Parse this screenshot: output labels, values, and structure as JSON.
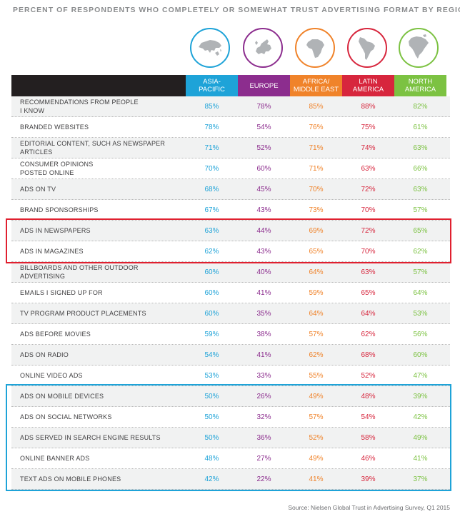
{
  "title": "PERCENT OF RESPONDENTS WHO COMPLETELY OR SOMEWHAT TRUST ADVERTISING FORMAT BY REGION",
  "source": "Source: Nielsen Global Trust in Advertising Survey, Q1 2015",
  "colors": {
    "asia": "#1ea3d8",
    "europe": "#8c2d8e",
    "africa": "#f0832a",
    "latam": "#d7263d",
    "na": "#7cc242",
    "header_dark": "#231f20",
    "highlight_red": "#e0202f",
    "highlight_blue": "#1ea3d8"
  },
  "chart_data": {
    "type": "table",
    "title": "PERCENT OF RESPONDENTS WHO COMPLETELY OR SOMEWHAT TRUST ADVERTISING FORMAT BY REGION",
    "columns": [
      {
        "key": "asia",
        "label": "ASIA-PACIFIC",
        "line1": "ASIA-",
        "line2": "PACIFIC",
        "icon": "asia-map-icon"
      },
      {
        "key": "europe",
        "label": "EUROPE",
        "line1": "EUROPE",
        "line2": "",
        "icon": "europe-map-icon"
      },
      {
        "key": "africa",
        "label": "AFRICA/ MIDDLE EAST",
        "line1": "AFRICA/",
        "line2": "MIDDLE EAST",
        "icon": "africa-map-icon"
      },
      {
        "key": "latam",
        "label": "LATIN AMERICA",
        "line1": "LATIN",
        "line2": "AMERICA",
        "icon": "latin-america-map-icon"
      },
      {
        "key": "na",
        "label": "NORTH AMERICA",
        "line1": "NORTH",
        "line2": "AMERICA",
        "icon": "north-america-map-icon"
      }
    ],
    "rows": [
      {
        "label": "RECOMMENDATIONS FROM PEOPLE I KNOW",
        "line1": "RECOMMENDATIONS FROM PEOPLE",
        "line2": "I KNOW",
        "values": [
          "85%",
          "78%",
          "85%",
          "88%",
          "82%"
        ]
      },
      {
        "label": "BRANDED WEBSITES",
        "line1": "BRANDED WEBSITES",
        "line2": "",
        "values": [
          "78%",
          "54%",
          "76%",
          "75%",
          "61%"
        ]
      },
      {
        "label": "EDITORIAL CONTENT, SUCH AS NEWSPAPER ARTICLES",
        "line1": "EDITORIAL CONTENT, SUCH AS NEWSPAPER",
        "line2": "ARTICLES",
        "values": [
          "71%",
          "52%",
          "71%",
          "74%",
          "63%"
        ]
      },
      {
        "label": "CONSUMER OPINIONS POSTED ONLINE",
        "line1": "CONSUMER OPINIONS",
        "line2": "POSTED ONLINE",
        "values": [
          "70%",
          "60%",
          "71%",
          "63%",
          "66%"
        ]
      },
      {
        "label": "ADS ON TV",
        "line1": "ADS ON TV",
        "line2": "",
        "values": [
          "68%",
          "45%",
          "70%",
          "72%",
          "63%"
        ]
      },
      {
        "label": "BRAND SPONSORSHIPS",
        "line1": "BRAND SPONSORSHIPS",
        "line2": "",
        "values": [
          "67%",
          "43%",
          "73%",
          "70%",
          "57%"
        ]
      },
      {
        "label": "ADS IN NEWSPAPERS",
        "line1": "ADS IN NEWSPAPERS",
        "line2": "",
        "values": [
          "63%",
          "44%",
          "69%",
          "72%",
          "65%"
        ]
      },
      {
        "label": "ADS IN MAGAZINES",
        "line1": "ADS IN MAGAZINES",
        "line2": "",
        "values": [
          "62%",
          "43%",
          "65%",
          "70%",
          "62%"
        ]
      },
      {
        "label": "BILLBOARDS AND OTHER OUTDOOR ADVERTISING",
        "line1": "BILLBOARDS AND OTHER OUTDOOR",
        "line2": "ADVERTISING",
        "values": [
          "60%",
          "40%",
          "64%",
          "63%",
          "57%"
        ]
      },
      {
        "label": "EMAILS I SIGNED UP FOR",
        "line1": "EMAILS I SIGNED UP FOR",
        "line2": "",
        "values": [
          "60%",
          "41%",
          "59%",
          "65%",
          "64%"
        ]
      },
      {
        "label": "TV PROGRAM PRODUCT PLACEMENTS",
        "line1": "TV PROGRAM PRODUCT PLACEMENTS",
        "line2": "",
        "values": [
          "60%",
          "35%",
          "64%",
          "64%",
          "53%"
        ]
      },
      {
        "label": "ADS BEFORE MOVIES",
        "line1": "ADS BEFORE MOVIES",
        "line2": "",
        "values": [
          "59%",
          "38%",
          "57%",
          "62%",
          "56%"
        ]
      },
      {
        "label": "ADS ON RADIO",
        "line1": "ADS ON RADIO",
        "line2": "",
        "values": [
          "54%",
          "41%",
          "62%",
          "68%",
          "60%"
        ]
      },
      {
        "label": "ONLINE VIDEO ADS",
        "line1": "ONLINE VIDEO ADS",
        "line2": "",
        "values": [
          "53%",
          "33%",
          "55%",
          "52%",
          "47%"
        ]
      },
      {
        "label": "ADS ON MOBILE DEVICES",
        "line1": "ADS ON MOBILE DEVICES",
        "line2": "",
        "values": [
          "50%",
          "26%",
          "49%",
          "48%",
          "39%"
        ]
      },
      {
        "label": "ADS ON SOCIAL NETWORKS",
        "line1": "ADS ON SOCIAL NETWORKS",
        "line2": "",
        "values": [
          "50%",
          "32%",
          "57%",
          "54%",
          "42%"
        ]
      },
      {
        "label": "ADS SERVED IN SEARCH ENGINE RESULTS",
        "line1": "ADS SERVED IN SEARCH ENGINE RESULTS",
        "line2": "",
        "values": [
          "50%",
          "36%",
          "52%",
          "58%",
          "49%"
        ]
      },
      {
        "label": "ONLINE BANNER ADS",
        "line1": "ONLINE BANNER ADS",
        "line2": "",
        "values": [
          "48%",
          "27%",
          "49%",
          "46%",
          "41%"
        ]
      },
      {
        "label": "TEXT ADS ON MOBILE PHONES",
        "line1": "TEXT ADS ON MOBILE PHONES",
        "line2": "",
        "values": [
          "42%",
          "22%",
          "41%",
          "39%",
          "37%"
        ]
      }
    ],
    "highlights": [
      {
        "color": "red",
        "rows": [
          "ADS IN NEWSPAPERS",
          "ADS IN MAGAZINES"
        ]
      },
      {
        "color": "blue",
        "rows": [
          "ADS ON MOBILE DEVICES",
          "ADS ON SOCIAL NETWORKS",
          "ADS SERVED IN SEARCH ENGINE RESULTS",
          "ONLINE BANNER ADS",
          "TEXT ADS ON MOBILE PHONES"
        ]
      }
    ]
  }
}
